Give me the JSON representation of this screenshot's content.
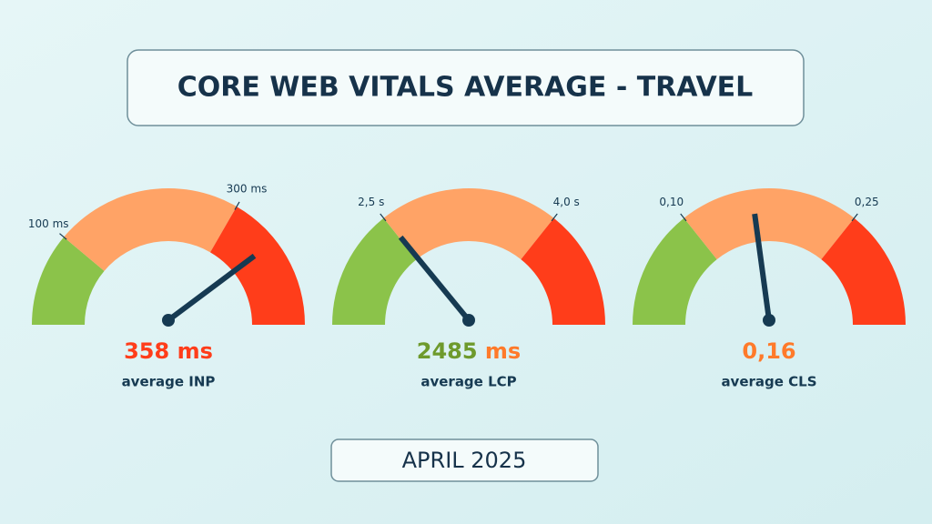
{
  "title": "CORE WEB VITALS AVERAGE - TRAVEL",
  "date": "APRIL 2025",
  "chart_data": [
    {
      "type": "gauge",
      "caption": "average INP",
      "value": 358,
      "value_label": "358",
      "unit": "ms",
      "value_color": "#ff3d1a",
      "unit_color": "#ff3d1a",
      "ylim": [
        0,
        450
      ],
      "yticks": [
        {
          "value": 100,
          "label": "100 ms"
        },
        {
          "value": 300,
          "label": "300 ms"
        }
      ],
      "segment_colors": [
        "#8bc34a",
        "#ffa366",
        "#ff3d1a"
      ],
      "needle_color": "#163a52"
    },
    {
      "type": "gauge",
      "caption": "average LCP",
      "value": 2485,
      "value_label": "2485",
      "unit": "ms",
      "value_color": "#6e9a2c",
      "unit_color": "#ff7a2a",
      "ylim": [
        1500,
        5000
      ],
      "yticks": [
        {
          "value": 2500,
          "label": "2,5 s"
        },
        {
          "value": 4000,
          "label": "4,0 s"
        }
      ],
      "segment_colors": [
        "#8bc34a",
        "#ffa366",
        "#ff3d1a"
      ],
      "needle_color": "#163a52"
    },
    {
      "type": "gauge",
      "caption": "average CLS",
      "value": 0.16,
      "value_label": "0,16",
      "value_color": "#ff7a2a",
      "ylim": [
        0,
        0.35
      ],
      "yticks": [
        {
          "value": 0.1,
          "label": "0,10"
        },
        {
          "value": 0.25,
          "label": "0,25"
        }
      ],
      "segment_colors": [
        "#8bc34a",
        "#ffa366",
        "#ff3d1a"
      ],
      "needle_color": "#163a52"
    }
  ]
}
